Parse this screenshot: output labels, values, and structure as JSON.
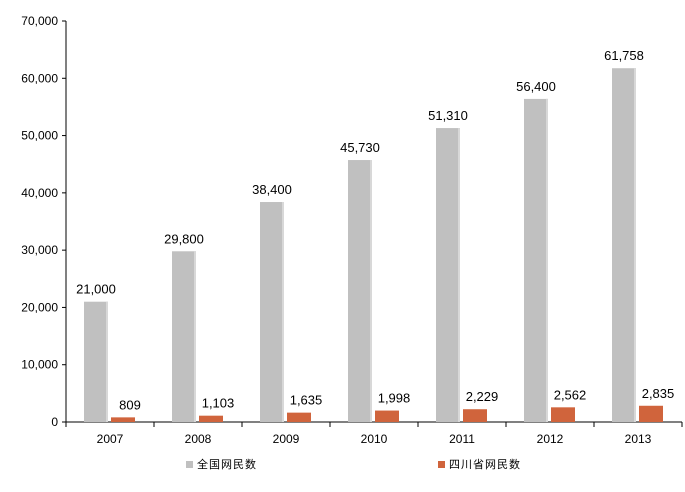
{
  "chart_data": {
    "type": "bar",
    "categories": [
      "2007",
      "2008",
      "2009",
      "2010",
      "2011",
      "2012",
      "2013"
    ],
    "series": [
      {
        "name": "全国网民数",
        "values": [
          21000,
          29800,
          38400,
          45730,
          51310,
          56400,
          61758
        ],
        "color": "#c0c0c0",
        "labels": [
          "21,000",
          "29,800",
          "38,400",
          "45,730",
          "51,310",
          "56,400",
          "61,758"
        ]
      },
      {
        "name": "四川省网民数",
        "values": [
          809,
          1103,
          1635,
          1998,
          2229,
          2562,
          2835
        ],
        "color": "#d0643c",
        "labels": [
          "809",
          "1,103",
          "1,635",
          "1,998",
          "2,229",
          "2,562",
          "2,835"
        ]
      }
    ],
    "yticks": [
      "0",
      "10,000",
      "20,000",
      "30,000",
      "40,000",
      "50,000",
      "60,000",
      "70,000"
    ],
    "ylim": [
      0,
      70000
    ],
    "grid": false,
    "legend_position": "bottom",
    "title": "",
    "xlabel": "",
    "ylabel": ""
  }
}
